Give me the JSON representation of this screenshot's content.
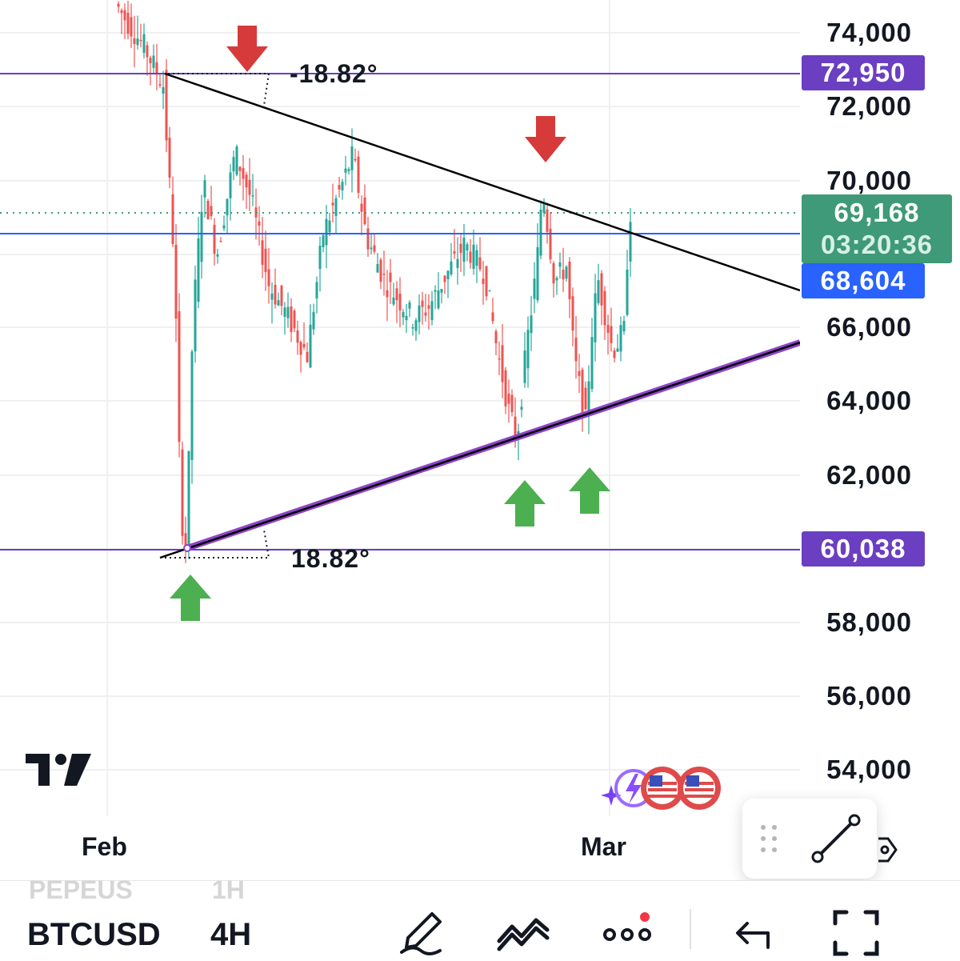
{
  "chart": {
    "symbol": "BTCUSD",
    "interval": "4H",
    "previous_symbol": "PEPEUS",
    "previous_interval": "1H",
    "price_axis_ticks": [
      "74,000",
      "72,000",
      "70,000",
      "66,000",
      "64,000",
      "62,000",
      "58,000",
      "56,000",
      "54,000"
    ],
    "time_axis_labels": [
      "Feb",
      "Mar"
    ],
    "price_tags": {
      "resistance_level": "72,950",
      "last_price": "69,168",
      "countdown": "03:20:36",
      "horizontal_line": "68,604",
      "support_level": "60,038"
    },
    "angle_labels": {
      "upper": "-18.82°",
      "lower": "18.82°"
    },
    "colors": {
      "up_candle": "#26a69a",
      "down_candle": "#ef5350",
      "level_line": "#6a3fc1",
      "horizontal_line": "#2962ff",
      "last_price": "#3e9a78",
      "down_arrow": "#d63a3a",
      "up_arrow": "#4caf50",
      "trendline": "#000000"
    },
    "pattern": "symmetrical triangle"
  },
  "toolbar": {
    "icons": [
      "brush-icon",
      "drawing-tools-icon",
      "more-icon",
      "undo-icon",
      "fullscreen-icon"
    ],
    "more_has_notification": true
  },
  "drawing_panel": {
    "active_tool": "trend-line-icon"
  }
}
